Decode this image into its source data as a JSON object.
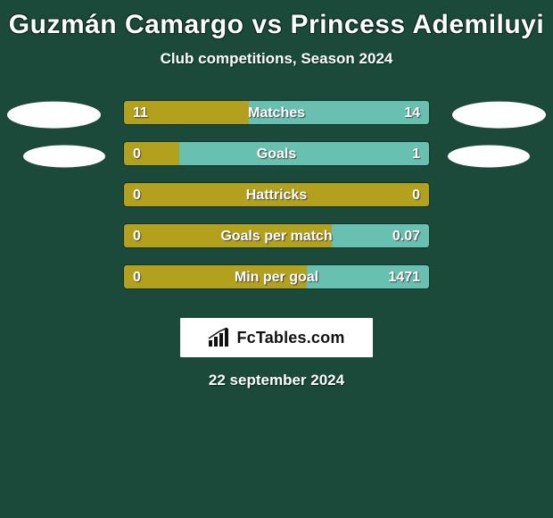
{
  "background_color": "#1c4a3a",
  "title": "Guzmán Camargo vs Princess Ademiluyi",
  "title_fontsize": 30,
  "subtitle": "Club competitions, Season 2024",
  "subtitle_fontsize": 17,
  "date_text": "22 september 2024",
  "ellipse_color": "#ffffff",
  "bar_track_color": "#2a6b55",
  "bar_border_color": "#0f3528",
  "player_a_color": "#b3a01c",
  "player_b_color": "#67c0b0",
  "text_shadow_color": "#444444",
  "stats": [
    {
      "label": "Matches",
      "a_val": "11",
      "b_val": "14",
      "a_pct": 41,
      "b_pct": 59,
      "show_ellipses": "row1"
    },
    {
      "label": "Goals",
      "a_val": "0",
      "b_val": "1",
      "a_pct": 18,
      "b_pct": 82,
      "show_ellipses": "row2"
    },
    {
      "label": "Hattricks",
      "a_val": "0",
      "b_val": "0",
      "a_pct": 100,
      "b_pct": 0,
      "show_ellipses": "none"
    },
    {
      "label": "Goals per match",
      "a_val": "0",
      "b_val": "0.07",
      "a_pct": 68,
      "b_pct": 32,
      "show_ellipses": "none"
    },
    {
      "label": "Min per goal",
      "a_val": "0",
      "b_val": "1471",
      "a_pct": 60,
      "b_pct": 40,
      "show_ellipses": "none"
    }
  ],
  "brand": {
    "text": "FcTables.com",
    "icon_name": "bar-chart-icon",
    "box_bg": "#ffffff",
    "text_color": "#111111"
  }
}
